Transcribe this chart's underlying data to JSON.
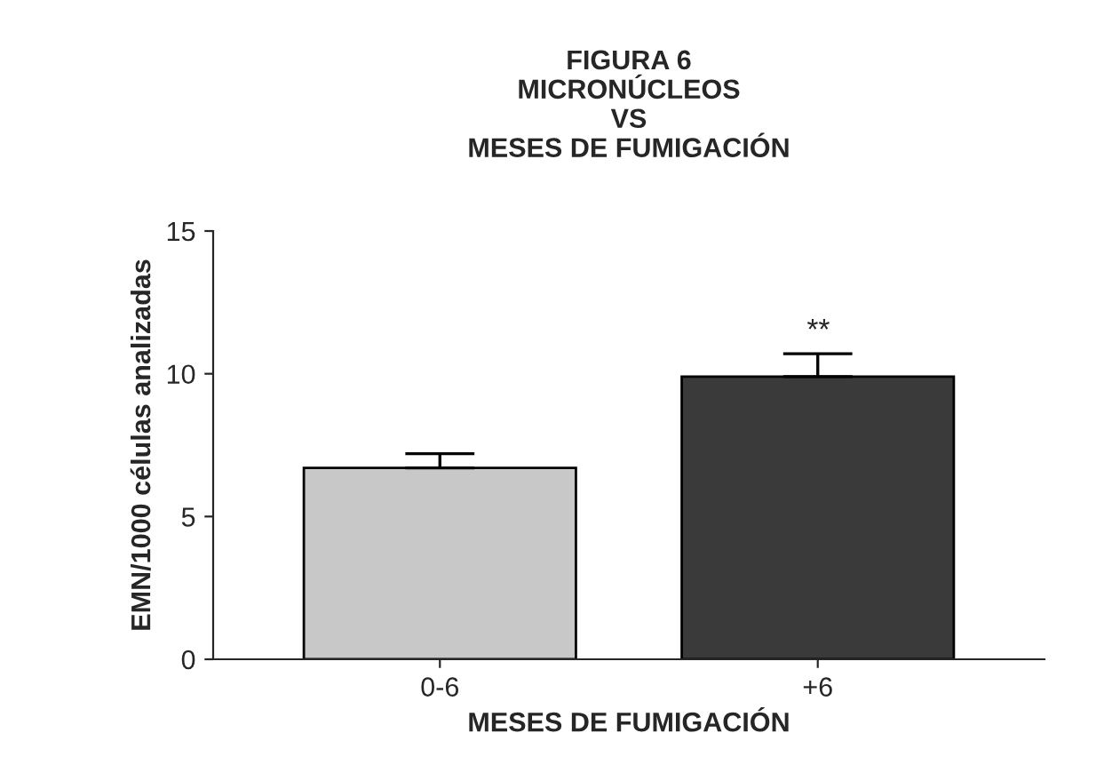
{
  "chart_data": {
    "type": "bar",
    "title": "FIGURA 6\nMICRONÚCLEOS\nVS\nMESES DE FUMIGACIÓN",
    "xlabel": "MESES DE FUMIGACIÓN",
    "ylabel": "EMN/1000 células analizadas",
    "categories": [
      "0-6",
      "+6"
    ],
    "values": [
      6.7,
      9.9
    ],
    "errors": [
      [
        6.7,
        7.2
      ],
      [
        9.9,
        10.7
      ]
    ],
    "colors": [
      "#c8c8c8",
      "#3a3a3a"
    ],
    "ylim": [
      0,
      15
    ],
    "yticks": [
      0,
      5,
      10,
      15
    ],
    "grid": false,
    "legend": false,
    "annotations": [
      "**"
    ]
  }
}
